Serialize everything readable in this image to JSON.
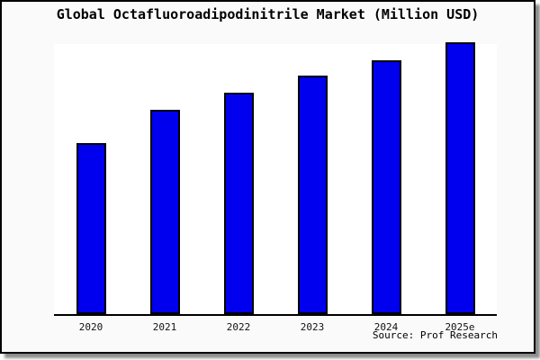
{
  "title": "Global Octafluoroadipodinitrile Market (Million USD)",
  "source": "Source: Prof Research",
  "colors": {
    "bar_fill": "#0000ee",
    "bar_border": "#000000",
    "card_background": "#fafafa",
    "plot_background": "#ffffff",
    "frame": "#000000",
    "text": "#000000"
  },
  "chart_data": {
    "type": "bar",
    "title": "Global Octafluoroadipodinitrile Market (Million USD)",
    "categories": [
      "2020",
      "2021",
      "2022",
      "2023",
      "2024",
      "2025e"
    ],
    "values": [
      62.8,
      75.1,
      81.4,
      87.7,
      93.4,
      100
    ],
    "value_scale_note": "no y-axis labels shown; values are relative bar heights normalized to 2025e = 100",
    "xlabel": "",
    "ylabel": "",
    "ylim": [
      0,
      100
    ],
    "grid": false,
    "legend": "none",
    "yaxis_visible": false,
    "source": "Source: Prof Research"
  }
}
